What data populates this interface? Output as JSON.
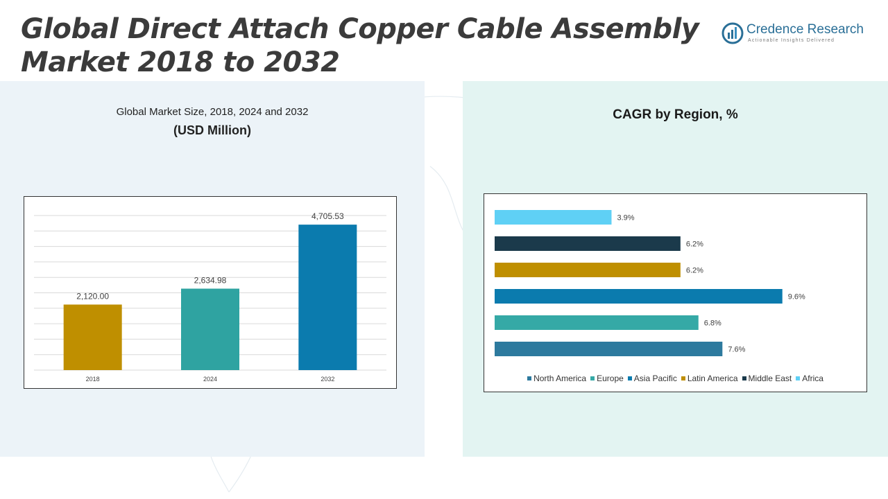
{
  "header": {
    "title_line1": "Global Direct Attach Copper Cable Assembly",
    "title_line2": "Market 2018 to 2032"
  },
  "logo": {
    "name": "Credence Research",
    "tagline": "Actionable Insights Delivered"
  },
  "left_panel": {
    "subtitle": "Global Market Size, 2018, 2024 and 2032",
    "unit": "(USD Million)"
  },
  "right_panel": {
    "title": "CAGR by Region, %"
  },
  "chart_data": [
    {
      "type": "bar",
      "orientation": "vertical",
      "categories": [
        "2018",
        "2024",
        "2032"
      ],
      "values": [
        2120.0,
        2634.98,
        4705.53
      ],
      "data_labels": [
        "2,120.00",
        "2,634.98",
        "4,705.53"
      ],
      "colors": [
        "#bf8f00",
        "#2fa3a1",
        "#0b7bae"
      ],
      "ylim": [
        0,
        5000
      ],
      "grid": true
    },
    {
      "type": "bar",
      "orientation": "horizontal",
      "categories": [
        "Africa",
        "Middle East",
        "Latin America",
        "Asia Pacific",
        "Europe",
        "North America"
      ],
      "values": [
        3.9,
        6.2,
        6.2,
        9.6,
        6.8,
        7.6
      ],
      "data_labels": [
        "3.9%",
        "6.2%",
        "6.2%",
        "9.6%",
        "6.8%",
        "7.6%"
      ],
      "colors": [
        "#5fd0f5",
        "#1b3a4b",
        "#bf8f00",
        "#0b7bae",
        "#35a9a6",
        "#2d7a9e"
      ],
      "xlim": [
        0,
        10
      ],
      "legend": {
        "position": "bottom",
        "entries": [
          "North America",
          "Europe",
          "Asia Pacific",
          "Latin America",
          "Middle East",
          "Africa"
        ],
        "colors": [
          "#2d7a9e",
          "#35a9a6",
          "#0b7bae",
          "#bf8f00",
          "#1b3a4b",
          "#5fd0f5"
        ]
      }
    }
  ]
}
